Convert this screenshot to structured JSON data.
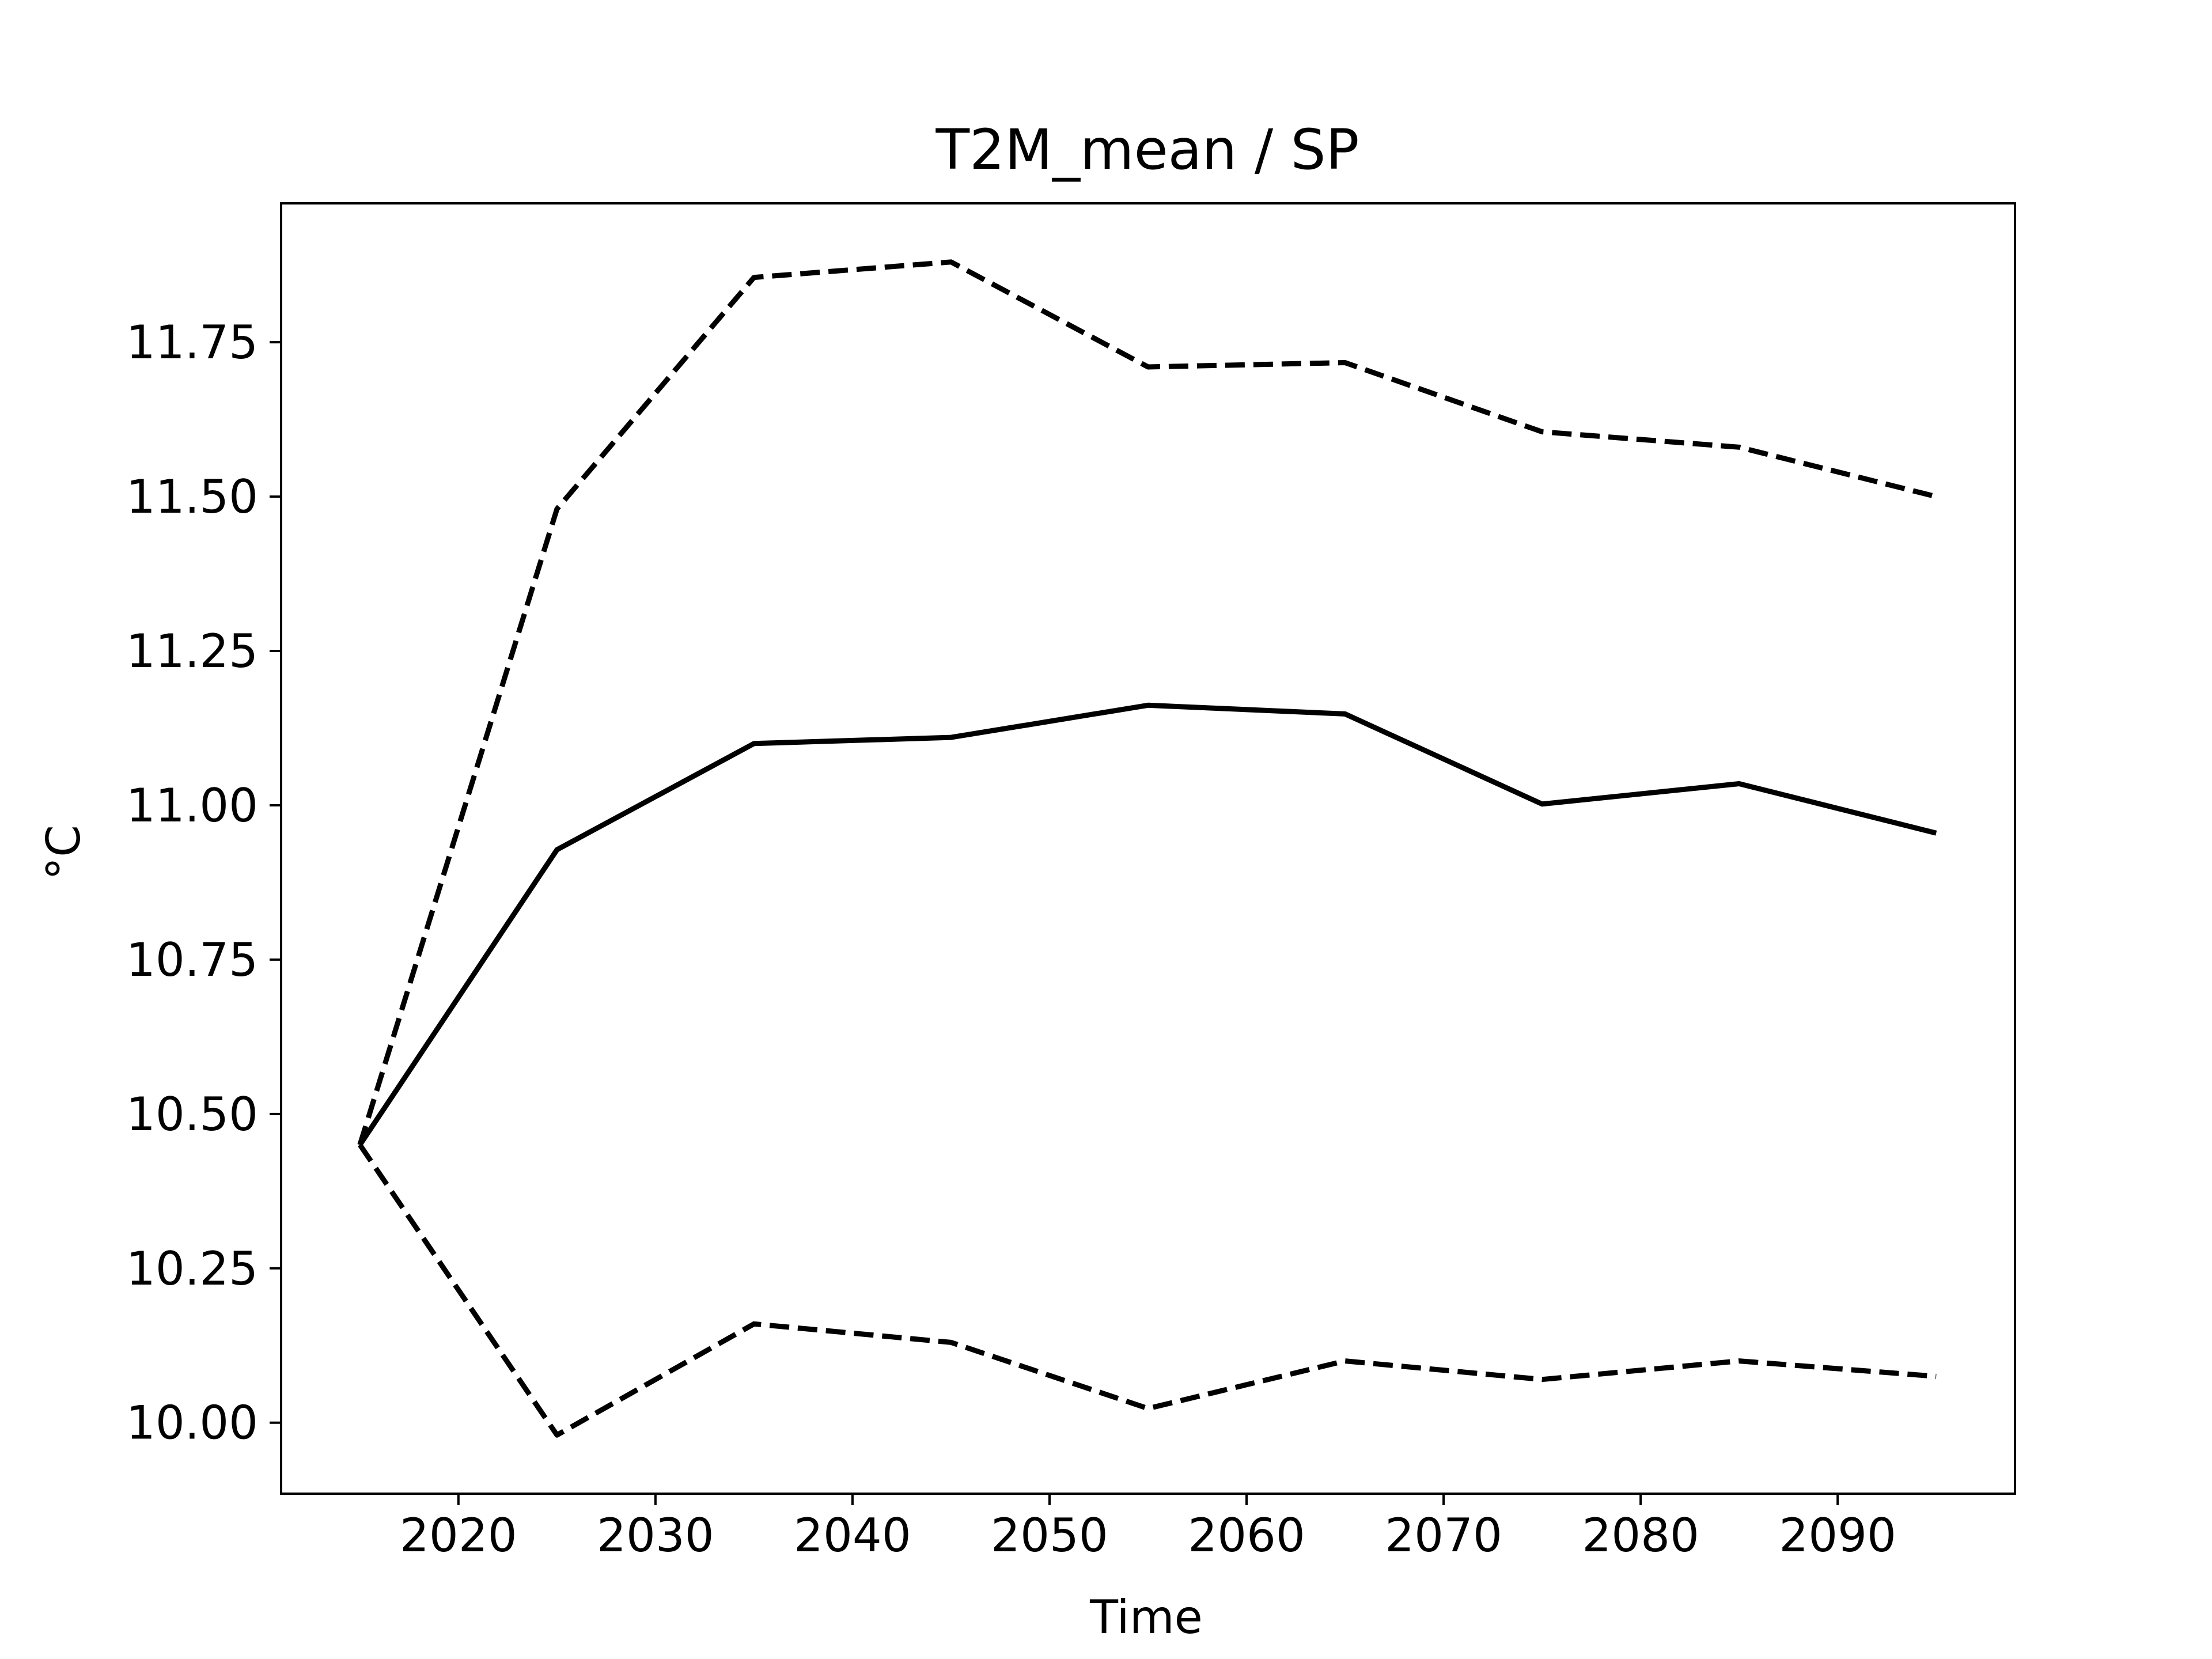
{
  "chart_data": {
    "type": "line",
    "title": "T2M_mean / SP",
    "xlabel": "Time",
    "ylabel": "°C",
    "xlim": [
      2011,
      2099
    ],
    "ylim": [
      9.885,
      11.975
    ],
    "xticks": [
      2020,
      2030,
      2040,
      2050,
      2060,
      2070,
      2080,
      2090
    ],
    "yticks": [
      10.0,
      10.25,
      10.5,
      10.75,
      11.0,
      11.25,
      11.5,
      11.75
    ],
    "ytick_labels": [
      "10.00",
      "10.25",
      "10.50",
      "10.75",
      "11.00",
      "11.25",
      "11.50",
      "11.75"
    ],
    "grid": false,
    "x": [
      2015,
      2025,
      2035,
      2045,
      2055,
      2065,
      2075,
      2085,
      2095
    ],
    "series": [
      {
        "id": "upper",
        "style": "dashed",
        "color": "#000000",
        "values": [
          10.45,
          11.48,
          11.855,
          11.88,
          11.71,
          11.717,
          11.605,
          11.58,
          11.5
        ]
      },
      {
        "id": "mean",
        "style": "solid",
        "color": "#000000",
        "values": [
          10.45,
          10.928,
          11.1,
          11.11,
          11.162,
          11.148,
          11.002,
          11.035,
          10.955
        ]
      },
      {
        "id": "lower",
        "style": "dashed",
        "color": "#000000",
        "values": [
          10.45,
          9.98,
          10.16,
          10.13,
          10.023,
          10.1,
          10.07,
          10.1,
          10.075
        ]
      }
    ]
  }
}
